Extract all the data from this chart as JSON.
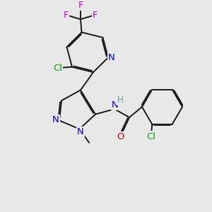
{
  "bg_color": "#e8e8e8",
  "bond_color": "#1a1a1a",
  "bond_width": 1.4,
  "dbo": 0.055,
  "atom_colors": {
    "N": "#0000cc",
    "O": "#cc0000",
    "Cl": "#00aa00",
    "F": "#cc00cc",
    "H": "#5a9ea0"
  },
  "fs": 9.5
}
